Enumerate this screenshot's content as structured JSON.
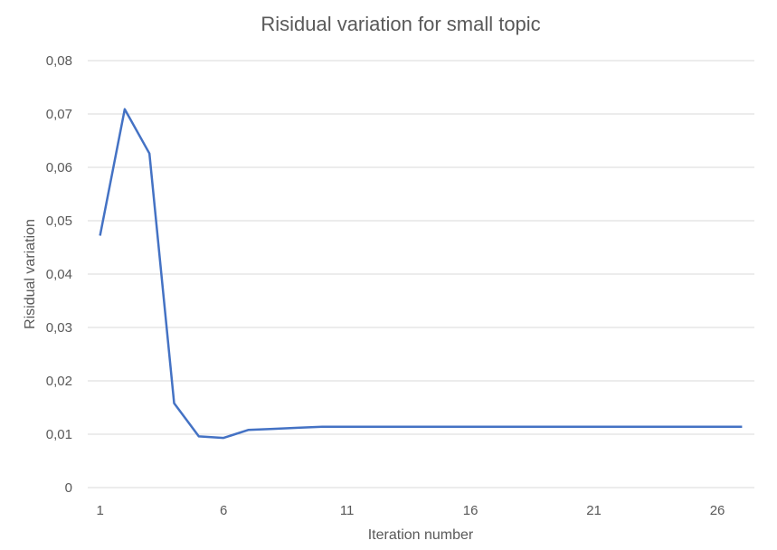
{
  "chart_data": {
    "type": "line",
    "title": "Risidual variation  for small topic",
    "xlabel": "Iteration number",
    "ylabel": "Risidual variation",
    "x": [
      1,
      2,
      3,
      4,
      5,
      6,
      7,
      8,
      9,
      10,
      11,
      12,
      13,
      14,
      15,
      16,
      17,
      18,
      19,
      20,
      21,
      22,
      23,
      24,
      25,
      26,
      27
    ],
    "xticks": [
      "1",
      "6",
      "11",
      "16",
      "21",
      "26"
    ],
    "yticks": [
      "0",
      "0,01",
      "0,02",
      "0,03",
      "0,04",
      "0,05",
      "0,06",
      "0,07",
      "0,08"
    ],
    "ylim": [
      0,
      0.08
    ],
    "grid": true,
    "legend": "none",
    "series": [
      {
        "color": "#4472c4",
        "values": [
          0.0472,
          0.0709,
          0.0626,
          0.0158,
          0.0096,
          0.0093,
          0.0108,
          0.011,
          0.0112,
          0.0114,
          0.0114,
          0.0114,
          0.0114,
          0.0114,
          0.0114,
          0.0114,
          0.0114,
          0.0114,
          0.0114,
          0.0114,
          0.0114,
          0.0114,
          0.0114,
          0.0114,
          0.0114,
          0.0114,
          0.0114
        ]
      }
    ]
  }
}
